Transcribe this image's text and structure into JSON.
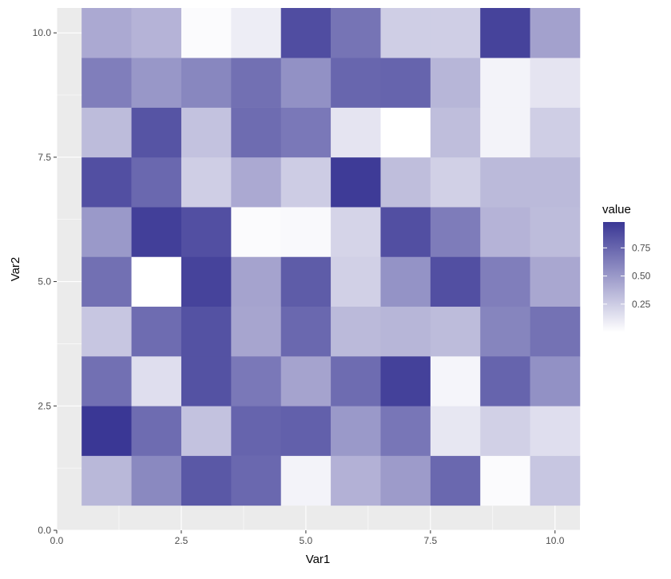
{
  "chart_data": {
    "type": "heatmap",
    "xlabel": "Var1",
    "ylabel": "Var2",
    "xlim": [
      0,
      10.5
    ],
    "ylim": [
      0,
      10.5
    ],
    "x_ticks": [
      0,
      2.5,
      5,
      7.5,
      10
    ],
    "x_tick_labels": [
      "0.0",
      "2.5",
      "5.0",
      "7.5",
      "10.0"
    ],
    "y_ticks": [
      0,
      2.5,
      5,
      7.5,
      10
    ],
    "y_tick_labels": [
      "0.0",
      "2.5",
      "5.0",
      "7.5",
      "10.0"
    ],
    "grid": true,
    "x": [
      1,
      2,
      3,
      4,
      5,
      6,
      7,
      8,
      9,
      10
    ],
    "y": [
      1,
      2,
      3,
      4,
      5,
      6,
      7,
      8,
      9,
      10
    ],
    "values": [
      [
        0.35,
        0.58,
        0.82,
        0.74,
        0.06,
        0.38,
        0.49,
        0.74,
        0.02,
        0.28
      ],
      [
        0.98,
        0.72,
        0.3,
        0.76,
        0.78,
        0.5,
        0.67,
        0.12,
        0.23,
        0.16
      ],
      [
        0.7,
        0.16,
        0.85,
        0.66,
        0.45,
        0.72,
        0.93,
        0.05,
        0.76,
        0.54
      ],
      [
        0.28,
        0.72,
        0.85,
        0.44,
        0.74,
        0.34,
        0.36,
        0.33,
        0.6,
        0.69
      ],
      [
        0.7,
        0.0,
        0.92,
        0.45,
        0.8,
        0.23,
        0.53,
        0.86,
        0.63,
        0.43
      ],
      [
        0.5,
        0.94,
        0.86,
        0.02,
        0.03,
        0.21,
        0.86,
        0.64,
        0.37,
        0.33
      ],
      [
        0.86,
        0.74,
        0.24,
        0.42,
        0.25,
        0.96,
        0.32,
        0.23,
        0.34,
        0.34
      ],
      [
        0.33,
        0.84,
        0.3,
        0.72,
        0.66,
        0.13,
        0.0,
        0.32,
        0.06,
        0.24
      ],
      [
        0.63,
        0.51,
        0.59,
        0.7,
        0.54,
        0.75,
        0.76,
        0.36,
        0.06,
        0.13
      ],
      [
        0.42,
        0.37,
        0.02,
        0.09,
        0.87,
        0.68,
        0.24,
        0.24,
        0.92,
        0.46
      ]
    ],
    "legend": {
      "title": "value",
      "position": "right",
      "ticks": [
        0.25,
        0.5,
        0.75
      ],
      "tick_labels": [
        "0.25",
        "0.50",
        "0.75"
      ],
      "range": [
        0,
        0.98
      ]
    },
    "colors": {
      "low": "#ffffff",
      "high": "#3a3795",
      "panel_background": "#ebebeb",
      "grid": "#ffffff"
    }
  }
}
